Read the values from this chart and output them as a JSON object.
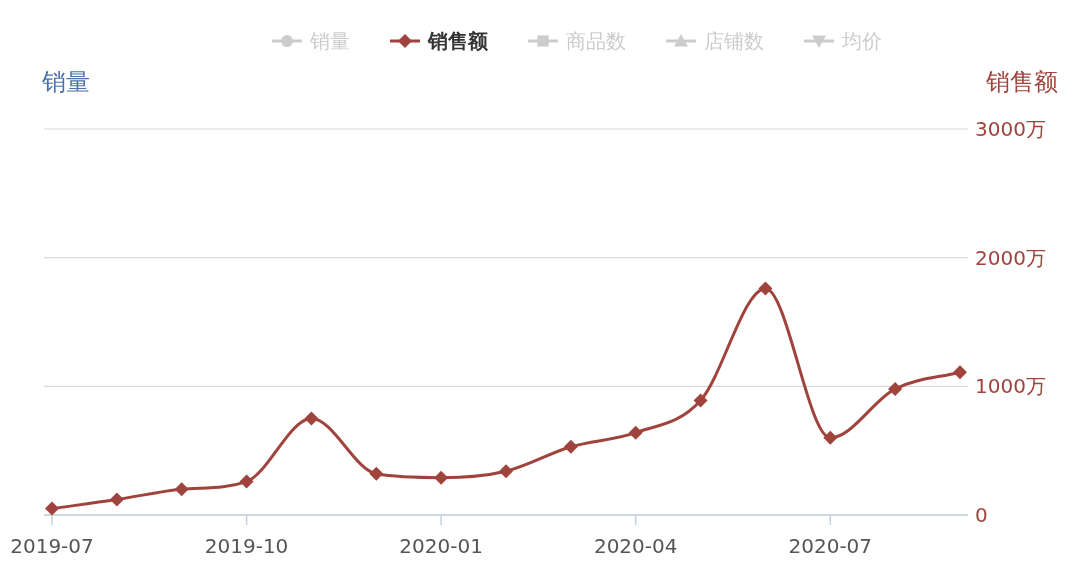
{
  "chart_data": {
    "type": "line",
    "ylabel": "销量",
    "y2label": "销售额",
    "categories": [
      "2019-07",
      null,
      null,
      "2019-10",
      null,
      null,
      "2020-01",
      null,
      null,
      "2020-04",
      null,
      null,
      "2020-07",
      null,
      null
    ],
    "series": [
      {
        "name": "销量",
        "color": "#cccccc",
        "marker": "circle",
        "values": [
          null,
          null,
          null,
          null,
          null,
          null,
          null,
          null,
          null,
          null,
          null,
          null,
          null,
          null,
          null
        ]
      },
      {
        "name": "销售额",
        "color": "#a0433d",
        "marker": "diamond",
        "axis": "y2",
        "values": [
          50,
          120,
          200,
          260,
          750,
          320,
          290,
          340,
          530,
          640,
          890,
          1760,
          600,
          980,
          1110
        ]
      },
      {
        "name": "商品数",
        "color": "#cccccc",
        "marker": "square",
        "values": [
          null,
          null,
          null,
          null,
          null,
          null,
          null,
          null,
          null,
          null,
          null,
          null,
          null,
          null,
          null
        ]
      },
      {
        "name": "店铺数",
        "color": "#cccccc",
        "marker": "triangle",
        "values": [
          null,
          null,
          null,
          null,
          null,
          null,
          null,
          null,
          null,
          null,
          null,
          null,
          null,
          null,
          null
        ]
      },
      {
        "name": "均价",
        "color": "#cccccc",
        "marker": "triangle-down",
        "values": [
          null,
          null,
          null,
          null,
          null,
          null,
          null,
          null,
          null,
          null,
          null,
          null,
          null,
          null,
          null
        ]
      }
    ],
    "y2lim": [
      0,
      3000
    ],
    "y2ticks": [
      0,
      {
        "value": 1000,
        "label": "1000万"
      },
      {
        "value": 2000,
        "label": "2000万"
      },
      {
        "value": 3000,
        "label": "3000万"
      }
    ],
    "grid": "y",
    "legend": "top"
  }
}
